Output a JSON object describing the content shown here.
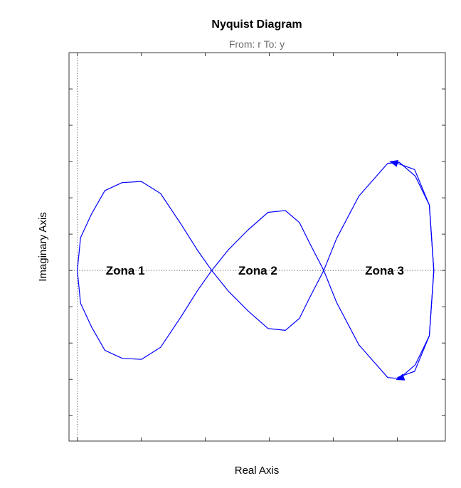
{
  "chart_data": {
    "type": "line",
    "title": "Nyquist Diagram",
    "subtitle": "From: r  To: y",
    "xlabel": "Real Axis",
    "ylabel": "Imaginary Axis",
    "xlim": [
      -0.13,
      5.75
    ],
    "ylim": [
      -4.7,
      6.0
    ],
    "grid": false,
    "series": [
      {
        "x": [
          0.0,
          0.05,
          0.22,
          0.43,
          0.7,
          1.0,
          1.3,
          1.63,
          1.88,
          2.1,
          2.36,
          2.67,
          2.98,
          3.25,
          3.47,
          3.63,
          3.85,
          4.05,
          4.4,
          4.85,
          5.03,
          5.28,
          5.5,
          5.57,
          5.5,
          5.27,
          5.0
        ],
        "y": [
          0.0,
          0.9,
          1.55,
          2.2,
          2.42,
          2.45,
          2.12,
          1.25,
          0.55,
          0.0,
          -0.57,
          -1.12,
          -1.6,
          -1.65,
          -1.32,
          -0.75,
          0.0,
          0.88,
          2.05,
          2.95,
          2.98,
          2.6,
          1.8,
          0.0,
          -1.8,
          -2.78,
          -2.95
        ]
      },
      {
        "x": [
          0.0,
          0.05,
          0.22,
          0.43,
          0.7,
          1.0,
          1.3,
          1.63,
          1.88,
          2.1,
          2.36,
          2.67,
          2.98,
          3.25,
          3.47,
          3.63,
          3.85,
          4.05,
          4.4,
          4.85,
          5.03,
          5.28,
          5.5,
          5.57,
          5.5,
          5.27,
          5.0
        ],
        "y": [
          0.0,
          -0.9,
          -1.55,
          -2.2,
          -2.42,
          -2.45,
          -2.12,
          -1.25,
          -0.55,
          0.0,
          0.57,
          1.12,
          1.6,
          1.65,
          1.32,
          0.75,
          0.0,
          -0.88,
          -2.05,
          -2.95,
          -2.98,
          -2.6,
          -1.8,
          0.0,
          1.8,
          2.78,
          2.95
        ]
      }
    ],
    "annotations": [
      {
        "text": "Zona 1",
        "x": 0.75,
        "y": 0.0
      },
      {
        "text": "Zona 2",
        "x": 2.82,
        "y": 0.0
      },
      {
        "text": "Zona 3",
        "x": 4.8,
        "y": 0.0
      }
    ],
    "colors": {
      "curve": "#0000ff",
      "axes": "#000000",
      "reference_lines": "#5a5a5a",
      "subtitle": "#6b6b6b"
    }
  }
}
